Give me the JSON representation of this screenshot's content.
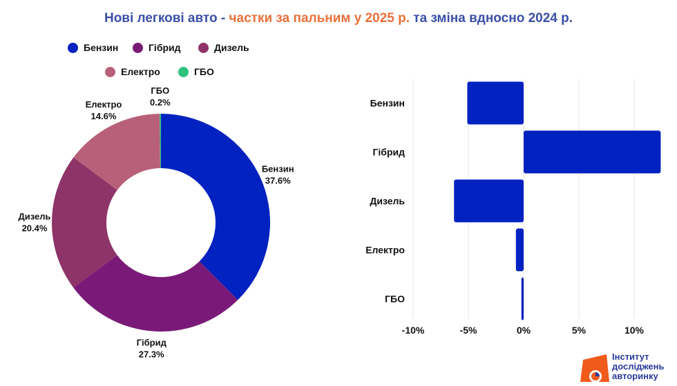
{
  "title": {
    "part1": "Нові легкові авто - ",
    "part2": "частки за пальним у 2025 р.",
    "part3": " та зміна вдносно 2024 р."
  },
  "colors": {
    "title": "#3a4fa8",
    "title_highlight": "#e8703a",
    "bar": "#0022c0"
  },
  "legend": [
    {
      "label": "Бензин",
      "color": "#0022c0"
    },
    {
      "label": "Гібрид",
      "color": "#7a1a78"
    },
    {
      "label": "Дизель",
      "color": "#8e3468"
    },
    {
      "label": "Електро",
      "color": "#b8607a"
    },
    {
      "label": "ГБО",
      "color": "#2ec27e"
    }
  ],
  "logo": {
    "line1": "Інститут",
    "line2": "досліджень",
    "line3": "авторинку"
  },
  "chart_data": [
    {
      "type": "pie",
      "donut": true,
      "categories": [
        "Бензин",
        "Гібрид",
        "Дизель",
        "Електро",
        "ГБО"
      ],
      "values": [
        37.6,
        27.3,
        20.4,
        14.6,
        0.2
      ],
      "labels": [
        "37.6%",
        "27.3%",
        "20.4%",
        "14.6%",
        "0.2%"
      ],
      "colors": [
        "#0022c0",
        "#7a1a78",
        "#8e3468",
        "#b8607a",
        "#2ec27e"
      ],
      "legend_position": "top"
    },
    {
      "type": "bar",
      "orientation": "horizontal",
      "categories": [
        "Бензин",
        "Гібрид",
        "Дизель",
        "Електро",
        "ГБО"
      ],
      "values": [
        -5.1,
        12.4,
        -6.3,
        -0.7,
        -0.2
      ],
      "unit": "%",
      "xlim": [
        -10,
        10
      ],
      "xticks": [
        -10,
        -5,
        0,
        5,
        10
      ],
      "xtick_labels": [
        "-10%",
        "-5%",
        "0%",
        "5%",
        "10%"
      ],
      "grid": true,
      "color": "#0022c0"
    }
  ]
}
